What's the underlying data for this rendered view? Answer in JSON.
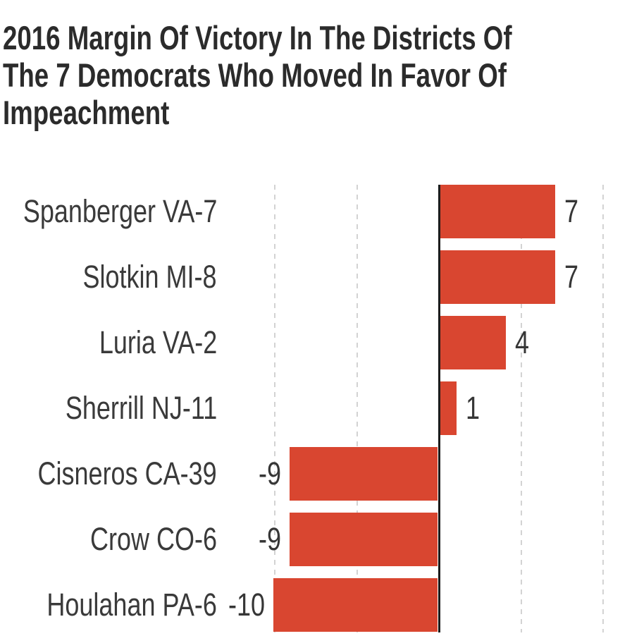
{
  "title": {
    "lines": [
      "2016 Margin Of Victory In The Districts Of",
      "The 7 Democrats Who Moved In Favor Of",
      "Impeachment"
    ]
  },
  "chart_data": {
    "type": "bar",
    "orientation": "horizontal",
    "title": "2016 Margin Of Victory In The Districts Of The 7 Democrats Who Moved In Favor Of Impeachment",
    "categories": [
      "Spanberger VA-7",
      "Slotkin MI-8",
      "Luria VA-2",
      "Sherrill NJ-11",
      "Cisneros CA-39",
      "Crow CO-6",
      "Houlahan PA-6"
    ],
    "values": [
      7,
      7,
      4,
      1,
      -9,
      -9,
      -10
    ],
    "value_labels": [
      "7",
      "7",
      "4",
      "1",
      "-9",
      "-9",
      "-10"
    ],
    "xlim": [
      -10,
      10
    ],
    "xticks": [
      -10,
      -5,
      0,
      5,
      10
    ],
    "grid": "vertical-dashed",
    "legend": "none",
    "bar_color": "#d94630",
    "zero_axis_color": "#1c1c1c",
    "gridline_color": "#d3d3d3",
    "label_color": "#3a3a3a",
    "title_color": "#2b2b2b"
  }
}
